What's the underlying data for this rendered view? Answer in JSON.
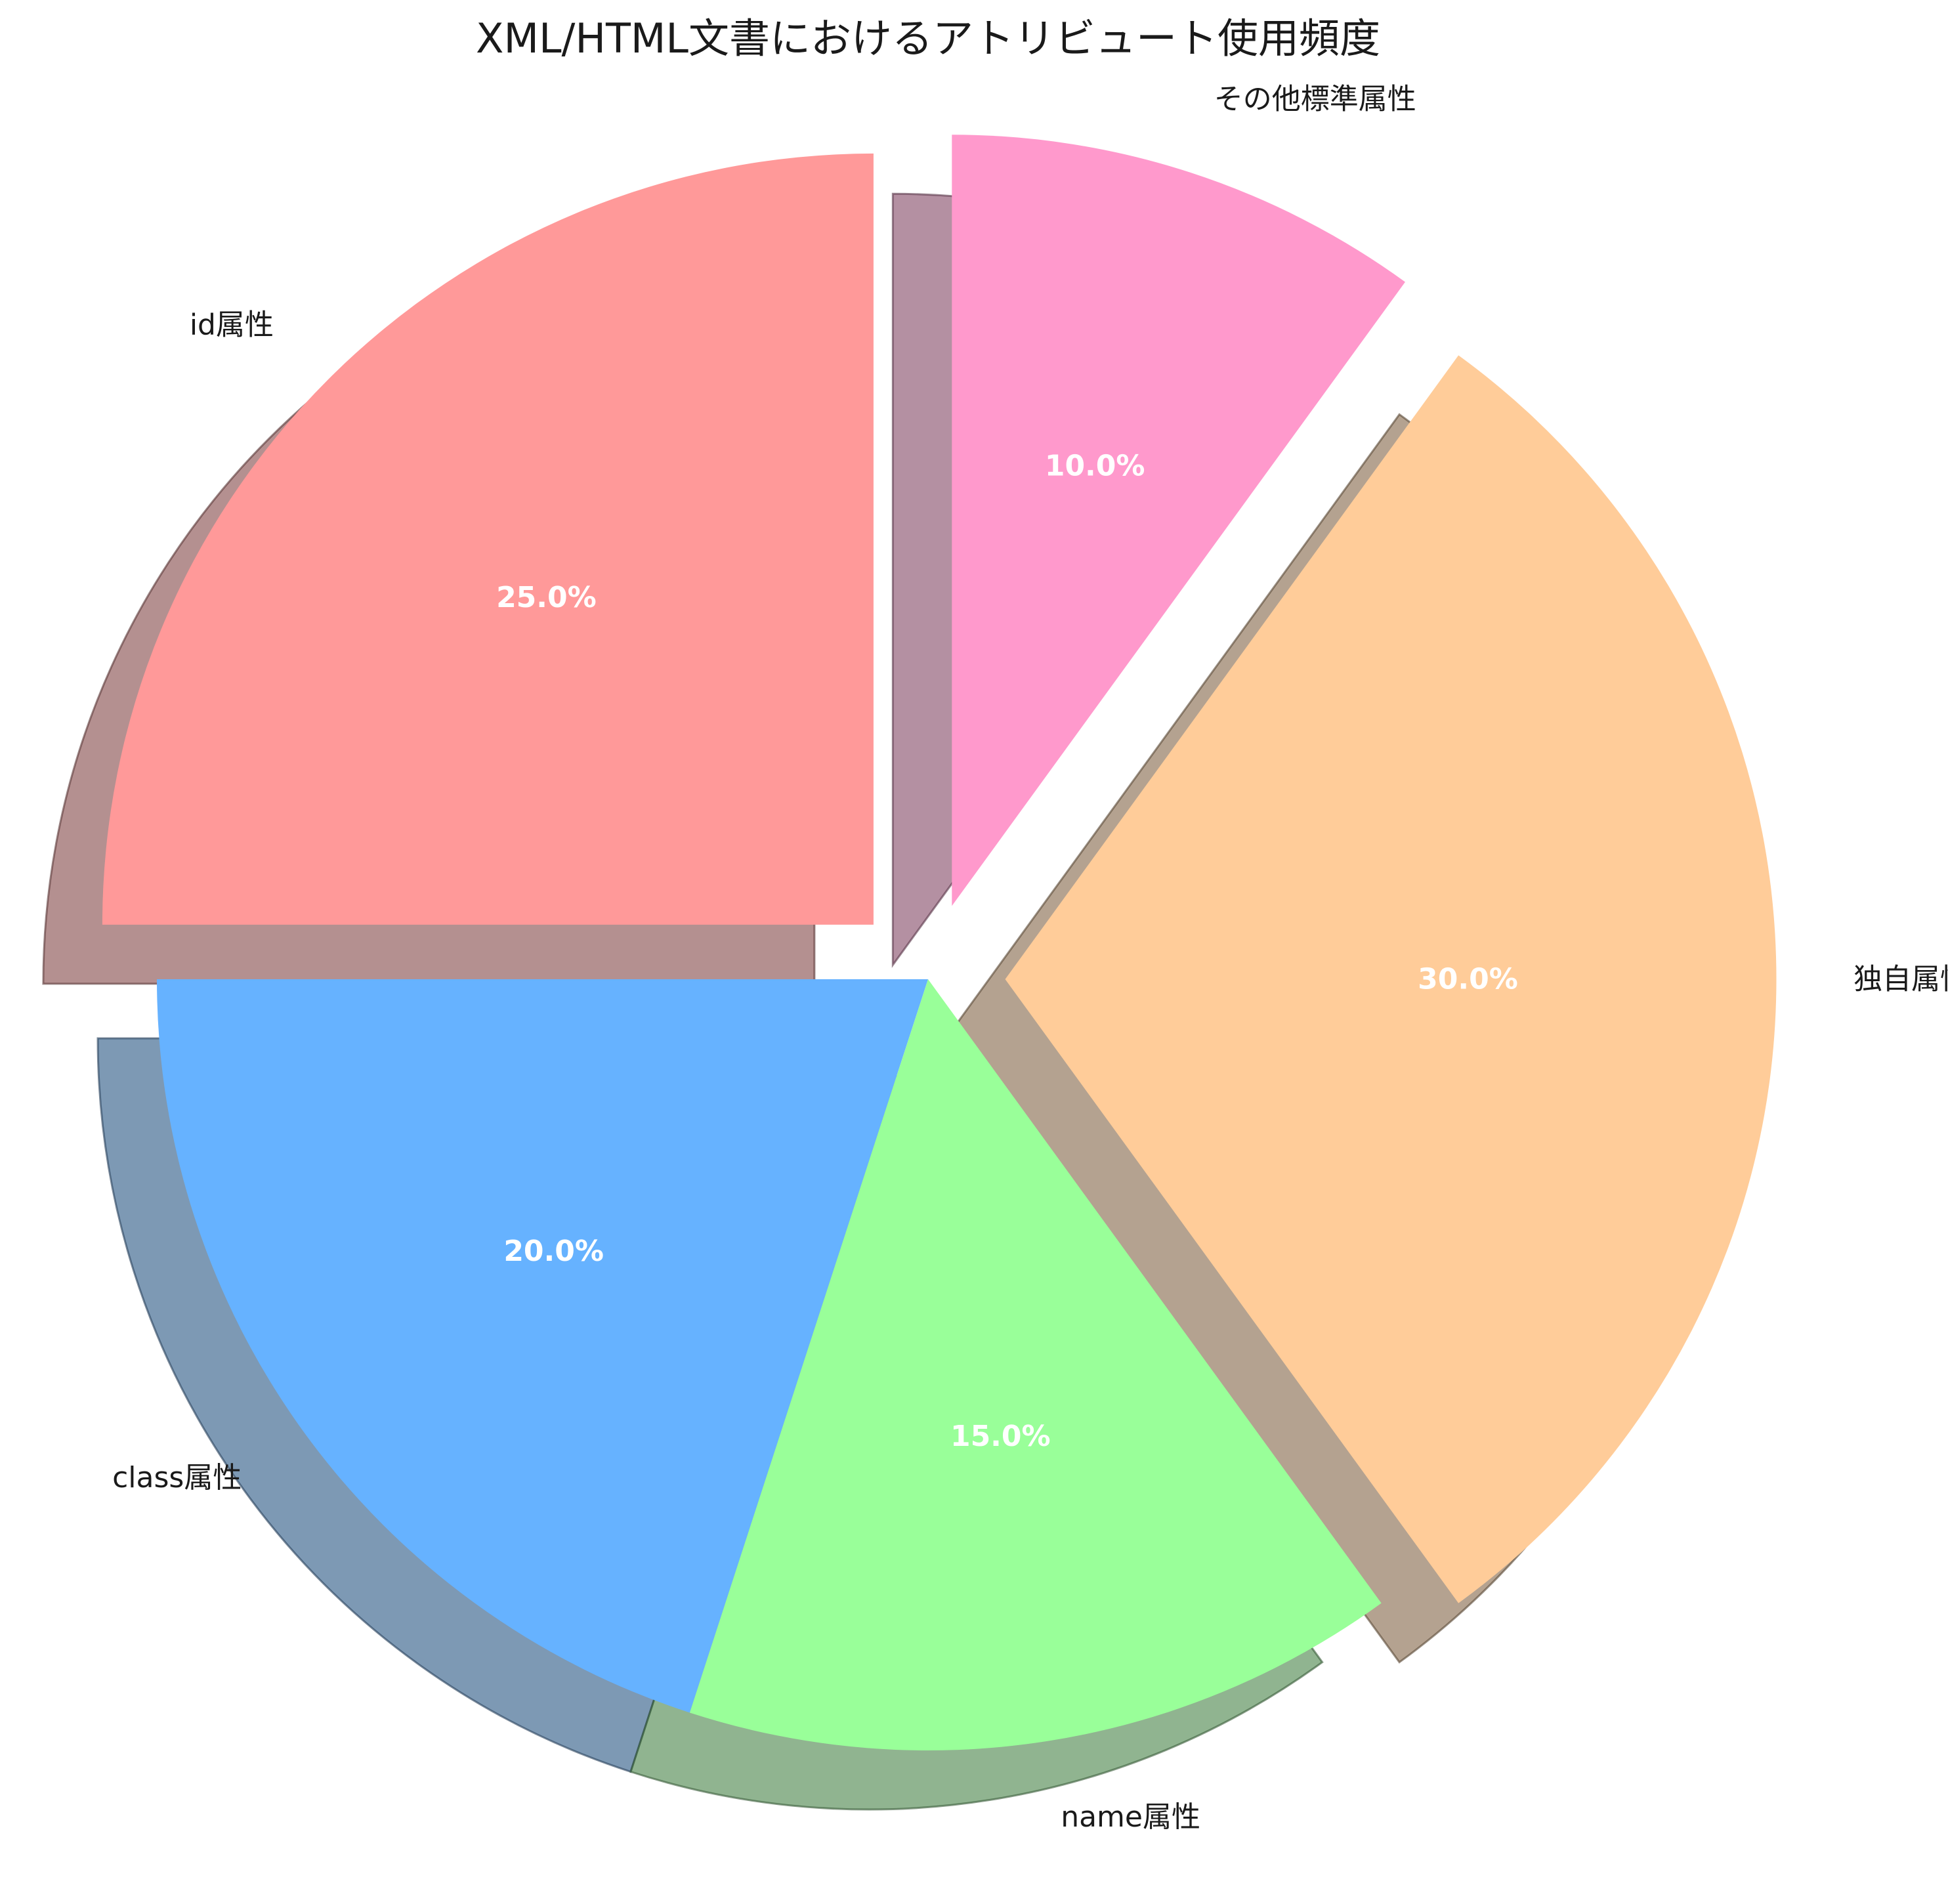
{
  "chart_data": {
    "type": "pie",
    "title": "XML/HTML文書におけるアトリビュート使用頻度",
    "start_angle_deg": 90,
    "direction": "counterclockwise",
    "shadow": true,
    "slices": [
      {
        "label": "id属性",
        "value": 25,
        "pct_label": "25.0%",
        "color": "#FF9999",
        "exploded": true
      },
      {
        "label": "class属性",
        "value": 20,
        "pct_label": "20.0%",
        "color": "#66B2FF",
        "exploded": false
      },
      {
        "label": "name属性",
        "value": 15,
        "pct_label": "15.0%",
        "color": "#99FF99",
        "exploded": false
      },
      {
        "label": "独自属性",
        "value": 30,
        "pct_label": "30.0%",
        "color": "#FFCC99",
        "exploded": true
      },
      {
        "label": "その他標準属性",
        "value": 10,
        "pct_label": "10.0%",
        "color": "#FF99CC",
        "exploded": true
      }
    ]
  }
}
